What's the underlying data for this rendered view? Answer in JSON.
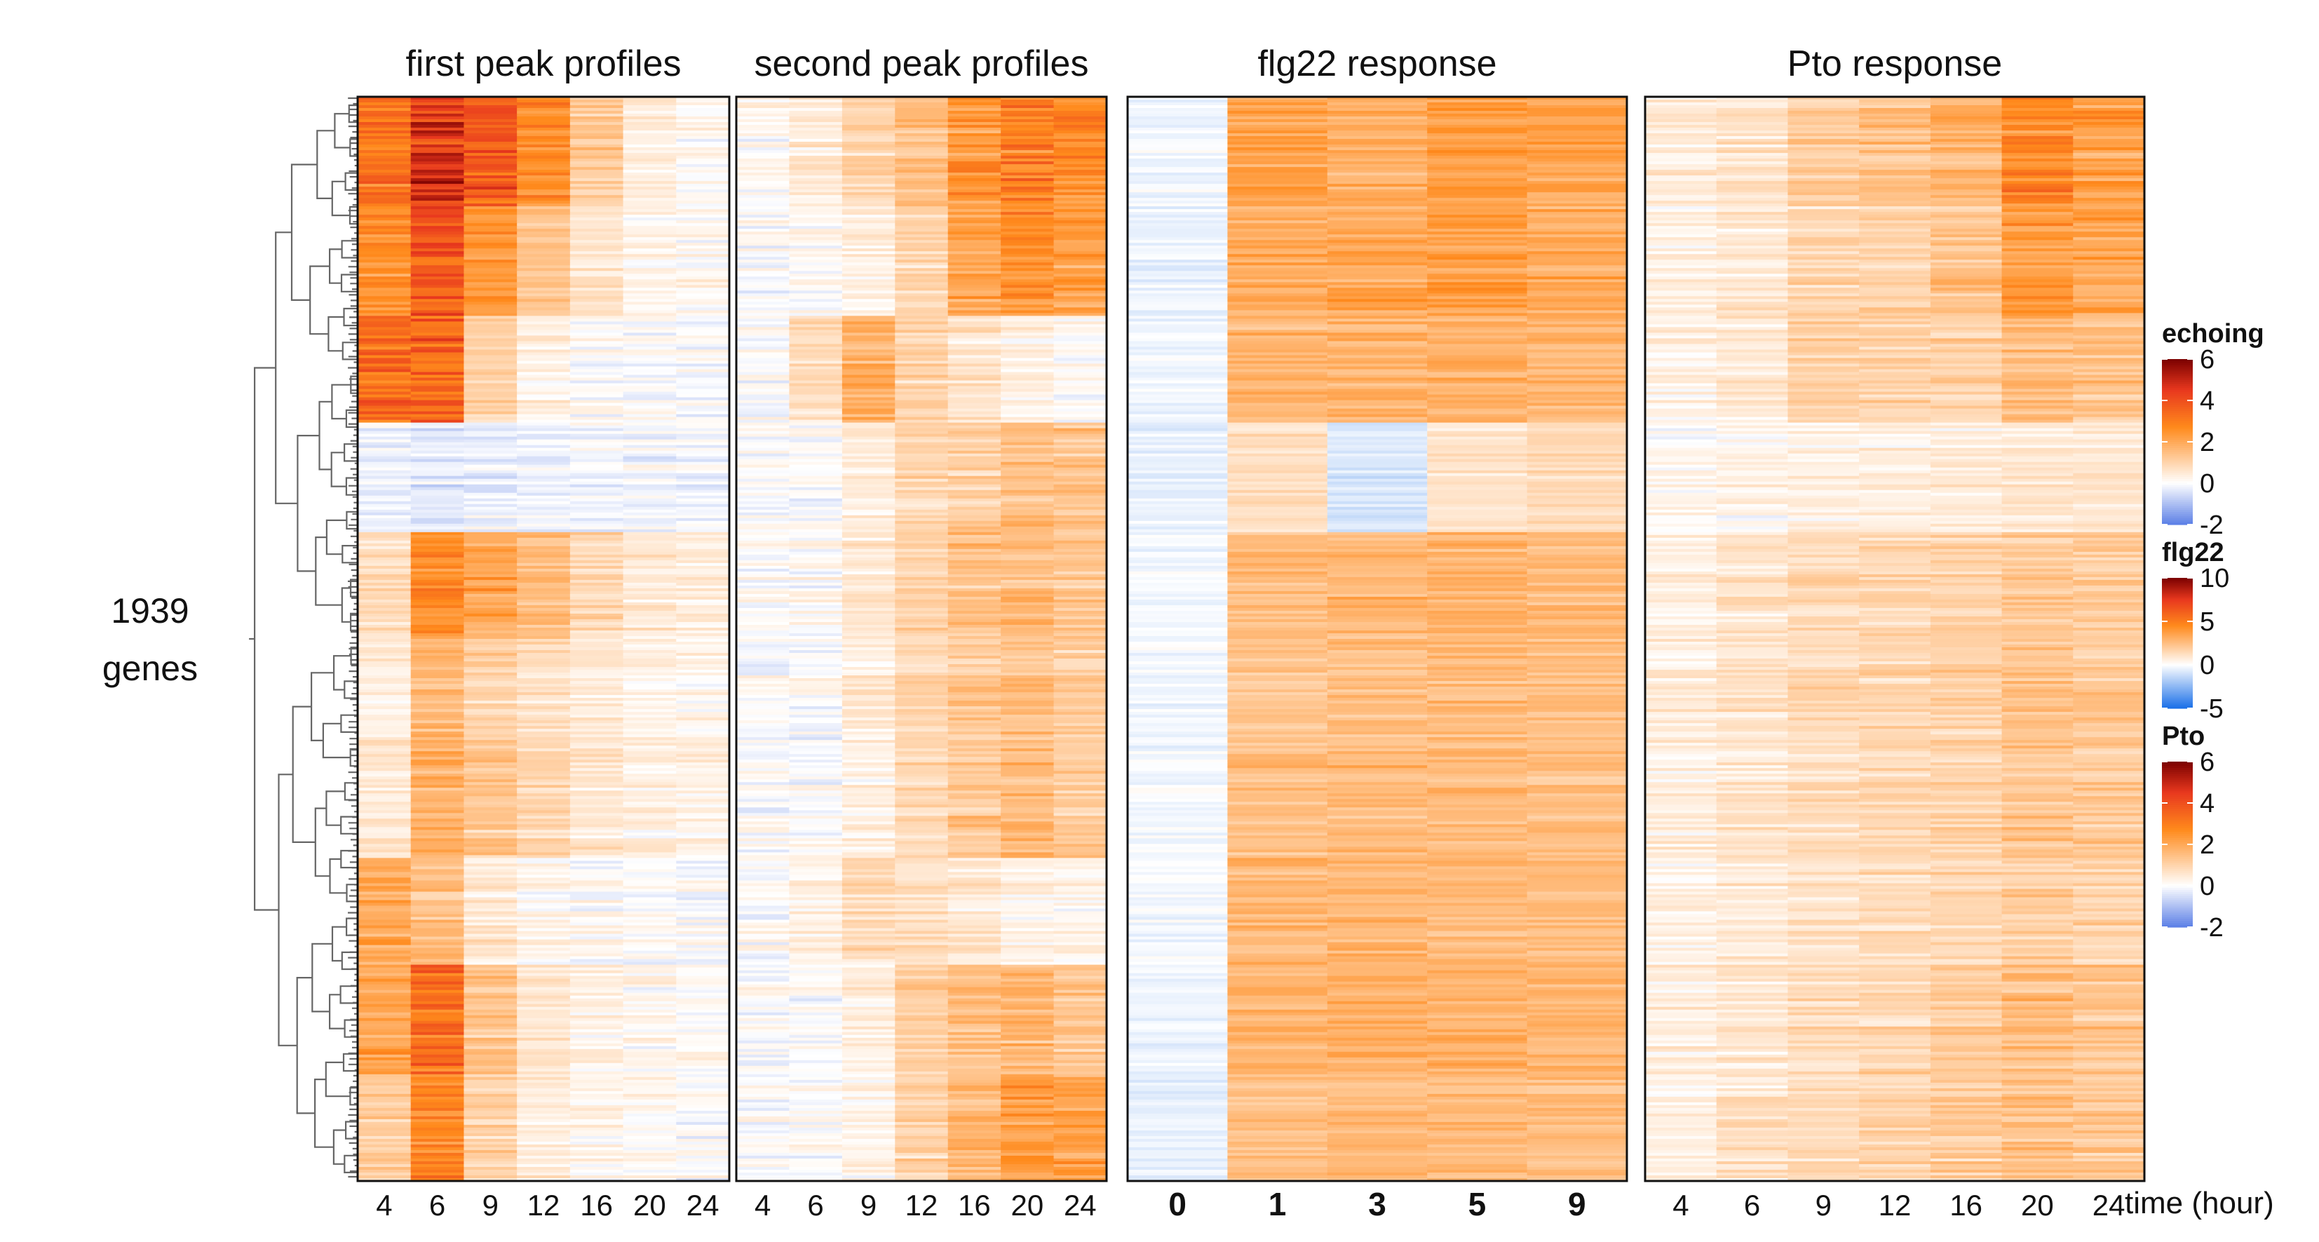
{
  "figure": {
    "row_label_line1": "1939",
    "row_label_line2": "genes",
    "x_axis_title": "time (hour)"
  },
  "chart_data": {
    "type": "heatmap",
    "row_count_label": "1939 genes",
    "panels": [
      {
        "title": "first peak profiles",
        "columns": [
          "4",
          "6",
          "9",
          "12",
          "16",
          "20",
          "24"
        ],
        "bold_ticks": false,
        "scale": "echoing",
        "block_means": [
          [
            3.0,
            4.5,
            3.8,
            2.5,
            1.2,
            0.4,
            0.2
          ],
          [
            2.4,
            3.6,
            2.4,
            1.3,
            0.6,
            0.2,
            0.1
          ],
          [
            3.2,
            3.4,
            1.0,
            0.3,
            0.1,
            0.0,
            0.0
          ],
          [
            -0.2,
            -0.3,
            -0.2,
            -0.2,
            -0.1,
            -0.1,
            -0.1
          ],
          [
            0.8,
            2.6,
            2.0,
            1.5,
            0.9,
            0.5,
            0.4
          ],
          [
            0.4,
            1.6,
            1.0,
            0.7,
            0.5,
            0.3,
            0.2
          ],
          [
            0.5,
            1.8,
            1.3,
            0.9,
            0.6,
            0.4,
            0.3
          ],
          [
            1.9,
            1.4,
            0.5,
            0.2,
            0.1,
            0.0,
            0.0
          ],
          [
            2.0,
            3.2,
            1.3,
            0.5,
            0.2,
            0.1,
            0.0
          ],
          [
            1.2,
            2.6,
            1.0,
            0.4,
            0.2,
            0.1,
            0.0
          ]
        ]
      },
      {
        "title": "second peak profiles",
        "columns": [
          "4",
          "6",
          "9",
          "12",
          "16",
          "20",
          "24"
        ],
        "bold_ticks": false,
        "scale": "echoing",
        "block_means": [
          [
            0.1,
            0.4,
            0.9,
            1.4,
            2.3,
            2.8,
            2.6
          ],
          [
            0.0,
            0.1,
            0.3,
            0.9,
            2.0,
            2.5,
            2.1
          ],
          [
            0.0,
            0.8,
            1.8,
            1.0,
            0.6,
            0.3,
            0.1
          ],
          [
            0.0,
            0.0,
            0.4,
            0.9,
            1.1,
            1.5,
            1.3
          ],
          [
            0.0,
            0.1,
            0.5,
            1.0,
            1.4,
            1.5,
            1.3
          ],
          [
            0.0,
            0.0,
            0.4,
            0.9,
            1.2,
            1.4,
            1.1
          ],
          [
            0.0,
            0.0,
            0.3,
            0.8,
            1.2,
            1.5,
            1.2
          ],
          [
            0.0,
            0.3,
            0.8,
            0.7,
            0.5,
            0.3,
            0.2
          ],
          [
            0.0,
            0.0,
            0.4,
            1.1,
            1.5,
            1.6,
            1.3
          ],
          [
            0.0,
            0.0,
            0.2,
            1.0,
            1.6,
            2.2,
            2.1
          ]
        ]
      },
      {
        "title": "flg22 response",
        "columns": [
          "0",
          "1",
          "3",
          "5",
          "9"
        ],
        "bold_ticks": true,
        "scale": "flg22",
        "block_means": [
          [
            -0.3,
            3.4,
            3.0,
            3.6,
            3.4
          ],
          [
            -0.4,
            3.0,
            3.3,
            3.6,
            3.2
          ],
          [
            -0.3,
            2.8,
            2.8,
            3.0,
            2.8
          ],
          [
            -0.5,
            1.2,
            -0.8,
            1.0,
            1.4
          ],
          [
            -0.2,
            2.5,
            2.8,
            2.8,
            2.6
          ],
          [
            -0.3,
            2.2,
            2.4,
            2.5,
            2.3
          ],
          [
            -0.2,
            2.4,
            2.6,
            2.6,
            2.4
          ],
          [
            -0.2,
            2.6,
            2.8,
            2.6,
            2.5
          ],
          [
            -0.3,
            2.8,
            3.0,
            3.0,
            2.8
          ],
          [
            -0.4,
            2.4,
            2.6,
            2.6,
            2.5
          ]
        ]
      },
      {
        "title": "Pto response",
        "columns": [
          "4",
          "6",
          "9",
          "12",
          "16",
          "20",
          "24"
        ],
        "bold_ticks": false,
        "scale": "Pto",
        "block_means": [
          [
            0.4,
            0.6,
            1.1,
            1.3,
            1.6,
            2.6,
            2.2
          ],
          [
            0.3,
            0.5,
            0.9,
            1.0,
            1.3,
            2.3,
            2.0
          ],
          [
            0.3,
            0.5,
            1.1,
            1.0,
            1.0,
            1.6,
            1.4
          ],
          [
            0.1,
            0.2,
            0.3,
            0.3,
            0.4,
            0.5,
            0.5
          ],
          [
            0.3,
            0.6,
            0.8,
            0.9,
            1.0,
            1.2,
            1.1
          ],
          [
            0.4,
            0.6,
            0.8,
            0.9,
            1.0,
            1.3,
            1.2
          ],
          [
            0.3,
            0.5,
            0.7,
            0.8,
            0.9,
            1.2,
            1.1
          ],
          [
            0.3,
            0.5,
            0.7,
            0.8,
            0.9,
            1.1,
            1.0
          ],
          [
            0.4,
            0.6,
            0.8,
            0.9,
            1.1,
            1.5,
            1.3
          ],
          [
            0.3,
            0.6,
            0.8,
            0.9,
            1.1,
            1.4,
            1.2
          ]
        ]
      }
    ],
    "legends": [
      {
        "title": "echoing",
        "range": [
          -2,
          6
        ],
        "ticks": [
          "6",
          "4",
          "2",
          "0",
          "-2"
        ],
        "colors": {
          "low": "#5b7fe6",
          "mid": "#ffffff",
          "mid_high": "#ff8a1c",
          "high_mid": "#e8381e",
          "high": "#7a0000"
        }
      },
      {
        "title": "flg22",
        "range": [
          -5,
          10
        ],
        "ticks": [
          "10",
          "5",
          "0",
          "-5"
        ],
        "colors": {
          "low": "#1a6fe8",
          "mid": "#ffffff",
          "mid_high": "#ff8a1c",
          "high_mid": "#e8381e",
          "high": "#7a0000"
        }
      },
      {
        "title": "Pto",
        "range": [
          -2,
          6
        ],
        "ticks": [
          "6",
          "4",
          "2",
          "0",
          "-2"
        ],
        "colors": {
          "low": "#5b7fe6",
          "mid": "#ffffff",
          "mid_high": "#ff8a1c",
          "high_mid": "#e8381e",
          "high": "#7a0000"
        }
      }
    ]
  }
}
